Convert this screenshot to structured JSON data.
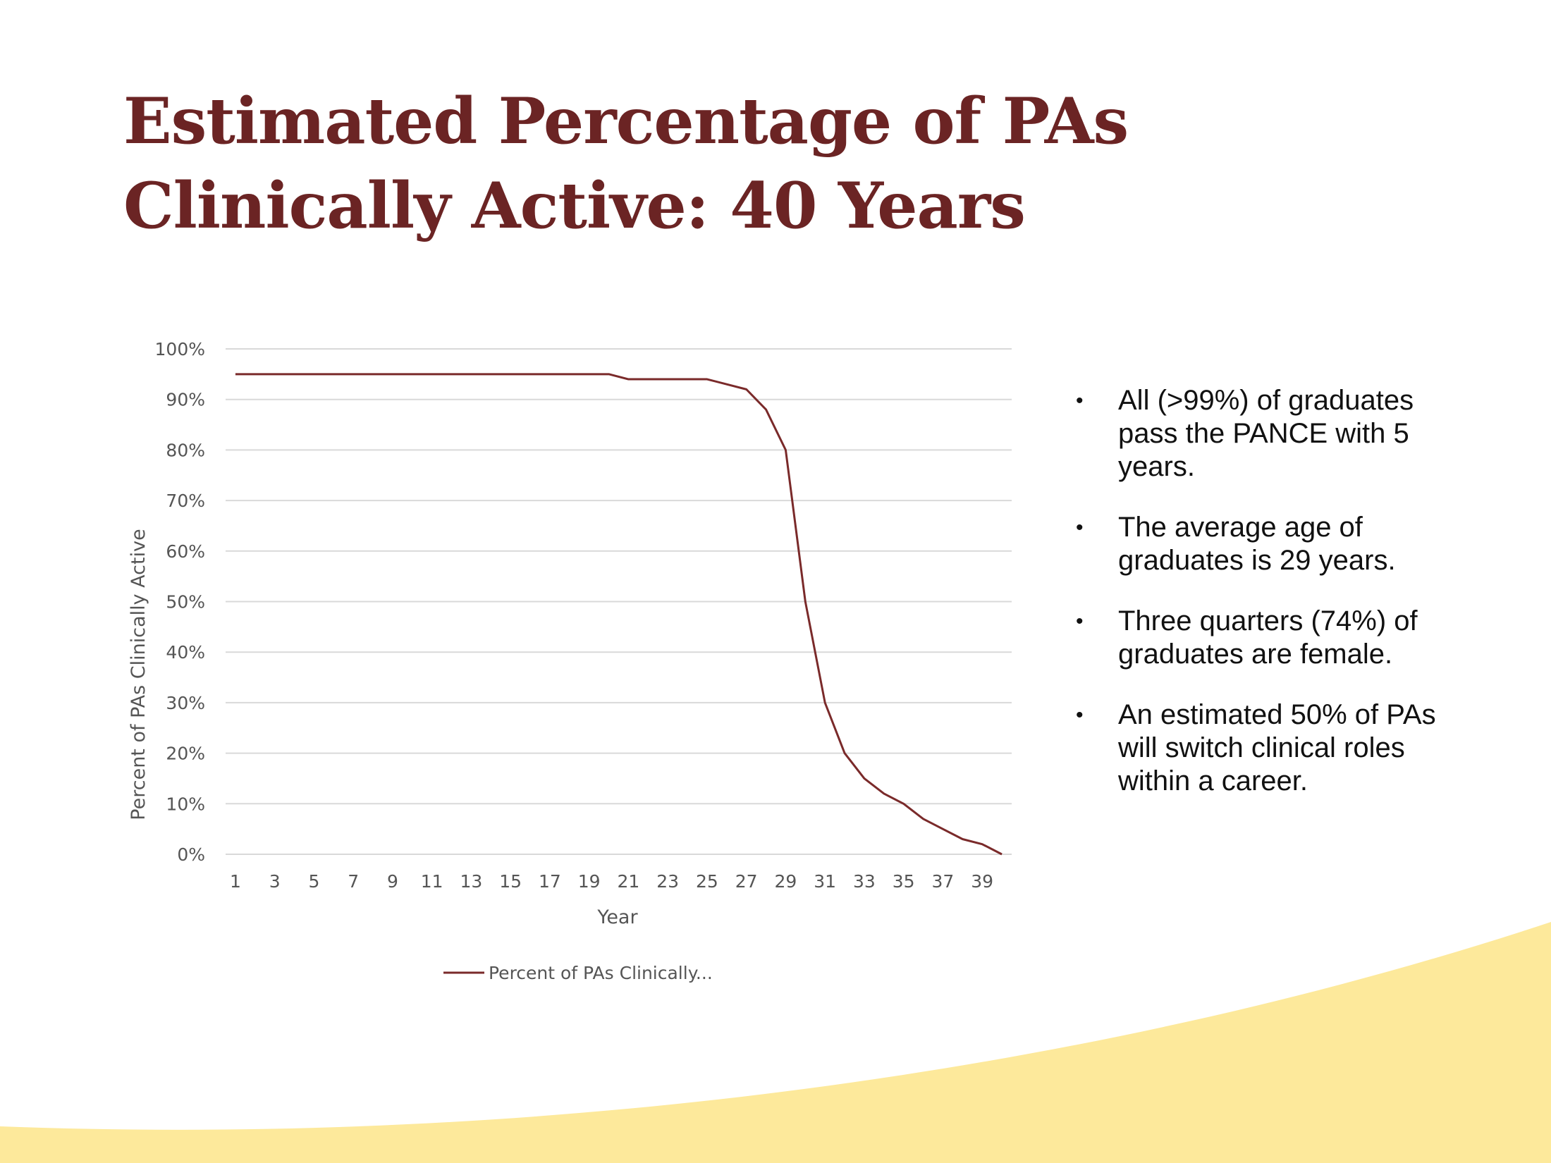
{
  "slide": {
    "title_lines": [
      "Estimated Percentage of PAs",
      "Clinically Active: 40 Years"
    ],
    "accent_color": "#6b2424",
    "wave_color": "#fde99b"
  },
  "bullets": [
    "All (>99%) of graduates pass the PANCE with 5 years.",
    "The average age of graduates is 29 years.",
    "Three quarters (74%) of graduates are female.",
    "An estimated 50% of PAs will switch clinical roles within a career."
  ],
  "chart_data": {
    "type": "line",
    "title": "",
    "xlabel": "Year",
    "ylabel": "Percent of PAs Clinically Active",
    "x": [
      1,
      2,
      3,
      4,
      5,
      6,
      7,
      8,
      9,
      10,
      11,
      12,
      13,
      14,
      15,
      16,
      17,
      18,
      19,
      20,
      21,
      22,
      23,
      24,
      25,
      26,
      27,
      28,
      29,
      30,
      31,
      32,
      33,
      34,
      35,
      36,
      37,
      38,
      39,
      40
    ],
    "x_tick_labels": [
      "1",
      "3",
      "5",
      "7",
      "9",
      "11",
      "13",
      "15",
      "17",
      "19",
      "21",
      "23",
      "25",
      "27",
      "29",
      "31",
      "33",
      "35",
      "37",
      "39"
    ],
    "y_tick_labels": [
      "0%",
      "10%",
      "20%",
      "30%",
      "40%",
      "50%",
      "60%",
      "70%",
      "80%",
      "90%",
      "100%"
    ],
    "ylim": [
      0,
      100
    ],
    "grid": true,
    "legend_position": "bottom",
    "series": [
      {
        "name": "Percent of PAs Clinically...",
        "color": "#7a2a2a",
        "values": [
          95,
          95,
          95,
          95,
          95,
          95,
          95,
          95,
          95,
          95,
          95,
          95,
          95,
          95,
          95,
          95,
          95,
          95,
          95,
          95,
          94,
          94,
          94,
          94,
          94,
          93,
          92,
          88,
          80,
          50,
          30,
          20,
          15,
          12,
          10,
          7,
          5,
          3,
          2,
          0
        ]
      }
    ]
  }
}
